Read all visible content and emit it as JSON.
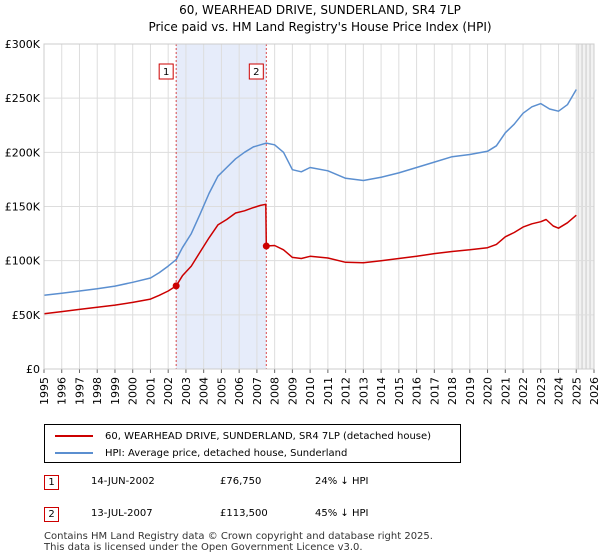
{
  "chart_data": {
    "type": "line",
    "title": "60, WEARHEAD DRIVE, SUNDERLAND, SR4 7LP",
    "subtitle": "Price paid vs. HM Land Registry's House Price Index (HPI)",
    "x_range": [
      1995,
      2026
    ],
    "ylim": [
      0,
      300000
    ],
    "y_ticks": [
      0,
      50000,
      100000,
      150000,
      200000,
      250000,
      300000
    ],
    "y_tick_labels": [
      "£0",
      "£50K",
      "£100K",
      "£150K",
      "£200K",
      "£250K",
      "£300K"
    ],
    "x_ticks": [
      "1995",
      "1996",
      "1997",
      "1998",
      "1999",
      "2000",
      "2001",
      "2002",
      "2003",
      "2004",
      "2005",
      "2006",
      "2007",
      "2008",
      "2009",
      "2010",
      "2011",
      "2012",
      "2013",
      "2014",
      "2015",
      "2016",
      "2017",
      "2018",
      "2019",
      "2020",
      "2021",
      "2022",
      "2023",
      "2024",
      "2025",
      "2026"
    ],
    "shaded_period": [
      2002.45,
      2007.53
    ],
    "forecast_start": 2025.1,
    "series": [
      {
        "name": "60, WEARHEAD DRIVE, SUNDERLAND, SR4 7LP (detached house)",
        "color": "#cc0000",
        "points": [
          [
            1995.0,
            51000
          ],
          [
            1996.0,
            53000
          ],
          [
            1997.0,
            55000
          ],
          [
            1998.0,
            57000
          ],
          [
            1999.0,
            59000
          ],
          [
            2000.0,
            61500
          ],
          [
            2001.0,
            64500
          ],
          [
            2001.5,
            68000
          ],
          [
            2002.0,
            72000
          ],
          [
            2002.45,
            76750
          ],
          [
            2002.8,
            86000
          ],
          [
            2003.3,
            95000
          ],
          [
            2003.8,
            108000
          ],
          [
            2004.3,
            121000
          ],
          [
            2004.8,
            133000
          ],
          [
            2005.3,
            138000
          ],
          [
            2005.8,
            144000
          ],
          [
            2006.3,
            146000
          ],
          [
            2006.8,
            149000
          ],
          [
            2007.2,
            151000
          ],
          [
            2007.5,
            152000
          ],
          [
            2007.53,
            113500
          ],
          [
            2008.0,
            114000
          ],
          [
            2008.5,
            110000
          ],
          [
            2009.0,
            103000
          ],
          [
            2009.5,
            102000
          ],
          [
            2010.0,
            104000
          ],
          [
            2011.0,
            102500
          ],
          [
            2012.0,
            98500
          ],
          [
            2013.0,
            98000
          ],
          [
            2014.0,
            100000
          ],
          [
            2015.0,
            102000
          ],
          [
            2016.0,
            104000
          ],
          [
            2017.0,
            106500
          ],
          [
            2018.0,
            108500
          ],
          [
            2019.0,
            110000
          ],
          [
            2020.0,
            112000
          ],
          [
            2020.5,
            115000
          ],
          [
            2021.0,
            122000
          ],
          [
            2021.5,
            126000
          ],
          [
            2022.0,
            131000
          ],
          [
            2022.5,
            134000
          ],
          [
            2023.0,
            136000
          ],
          [
            2023.3,
            138000
          ],
          [
            2023.7,
            132000
          ],
          [
            2024.0,
            130000
          ],
          [
            2024.5,
            135000
          ],
          [
            2025.0,
            142000
          ]
        ]
      },
      {
        "name": "HPI: Average price, detached house, Sunderland",
        "color": "#5b8fd0",
        "points": [
          [
            1995.0,
            68000
          ],
          [
            1996.0,
            70000
          ],
          [
            1997.0,
            72000
          ],
          [
            1998.0,
            74000
          ],
          [
            1999.0,
            76500
          ],
          [
            2000.0,
            80000
          ],
          [
            2001.0,
            84000
          ],
          [
            2001.5,
            89000
          ],
          [
            2002.0,
            95000
          ],
          [
            2002.45,
            101000
          ],
          [
            2002.8,
            112000
          ],
          [
            2003.3,
            125000
          ],
          [
            2003.8,
            143000
          ],
          [
            2004.3,
            162000
          ],
          [
            2004.8,
            178000
          ],
          [
            2005.3,
            186000
          ],
          [
            2005.8,
            194000
          ],
          [
            2006.3,
            200000
          ],
          [
            2006.8,
            205000
          ],
          [
            2007.2,
            207000
          ],
          [
            2007.53,
            208500
          ],
          [
            2008.0,
            207000
          ],
          [
            2008.5,
            200000
          ],
          [
            2009.0,
            184000
          ],
          [
            2009.5,
            182000
          ],
          [
            2010.0,
            186000
          ],
          [
            2011.0,
            183000
          ],
          [
            2012.0,
            176000
          ],
          [
            2013.0,
            174000
          ],
          [
            2014.0,
            177000
          ],
          [
            2015.0,
            181000
          ],
          [
            2016.0,
            186000
          ],
          [
            2017.0,
            191000
          ],
          [
            2018.0,
            196000
          ],
          [
            2019.0,
            198000
          ],
          [
            2020.0,
            201000
          ],
          [
            2020.5,
            206000
          ],
          [
            2021.0,
            218000
          ],
          [
            2021.5,
            226000
          ],
          [
            2022.0,
            236000
          ],
          [
            2022.5,
            242000
          ],
          [
            2023.0,
            245000
          ],
          [
            2023.5,
            240000
          ],
          [
            2024.0,
            238000
          ],
          [
            2024.5,
            244000
          ],
          [
            2025.0,
            258000
          ]
        ]
      }
    ],
    "sales": [
      {
        "label": "1",
        "x": 2002.45,
        "price": 76750
      },
      {
        "label": "2",
        "x": 2007.53,
        "price": 113500
      }
    ]
  },
  "legend": {
    "property_label": "60, WEARHEAD DRIVE, SUNDERLAND, SR4 7LP (detached house)",
    "hpi_label": "HPI: Average price, detached house, Sunderland"
  },
  "sales_table": [
    {
      "num": "1",
      "date": "14-JUN-2002",
      "price": "£76,750",
      "hpi": "24% ↓ HPI"
    },
    {
      "num": "2",
      "date": "13-JUL-2007",
      "price": "£113,500",
      "hpi": "45% ↓ HPI"
    }
  ],
  "footer": {
    "line1": "Contains HM Land Registry data © Crown copyright and database right 2025.",
    "line2": "This data is licensed under the Open Government Licence v3.0."
  },
  "colors": {
    "property": "#cc0000",
    "hpi": "#5b8fd0",
    "shade": "#e6ecfa",
    "grid": "#dddddd"
  }
}
